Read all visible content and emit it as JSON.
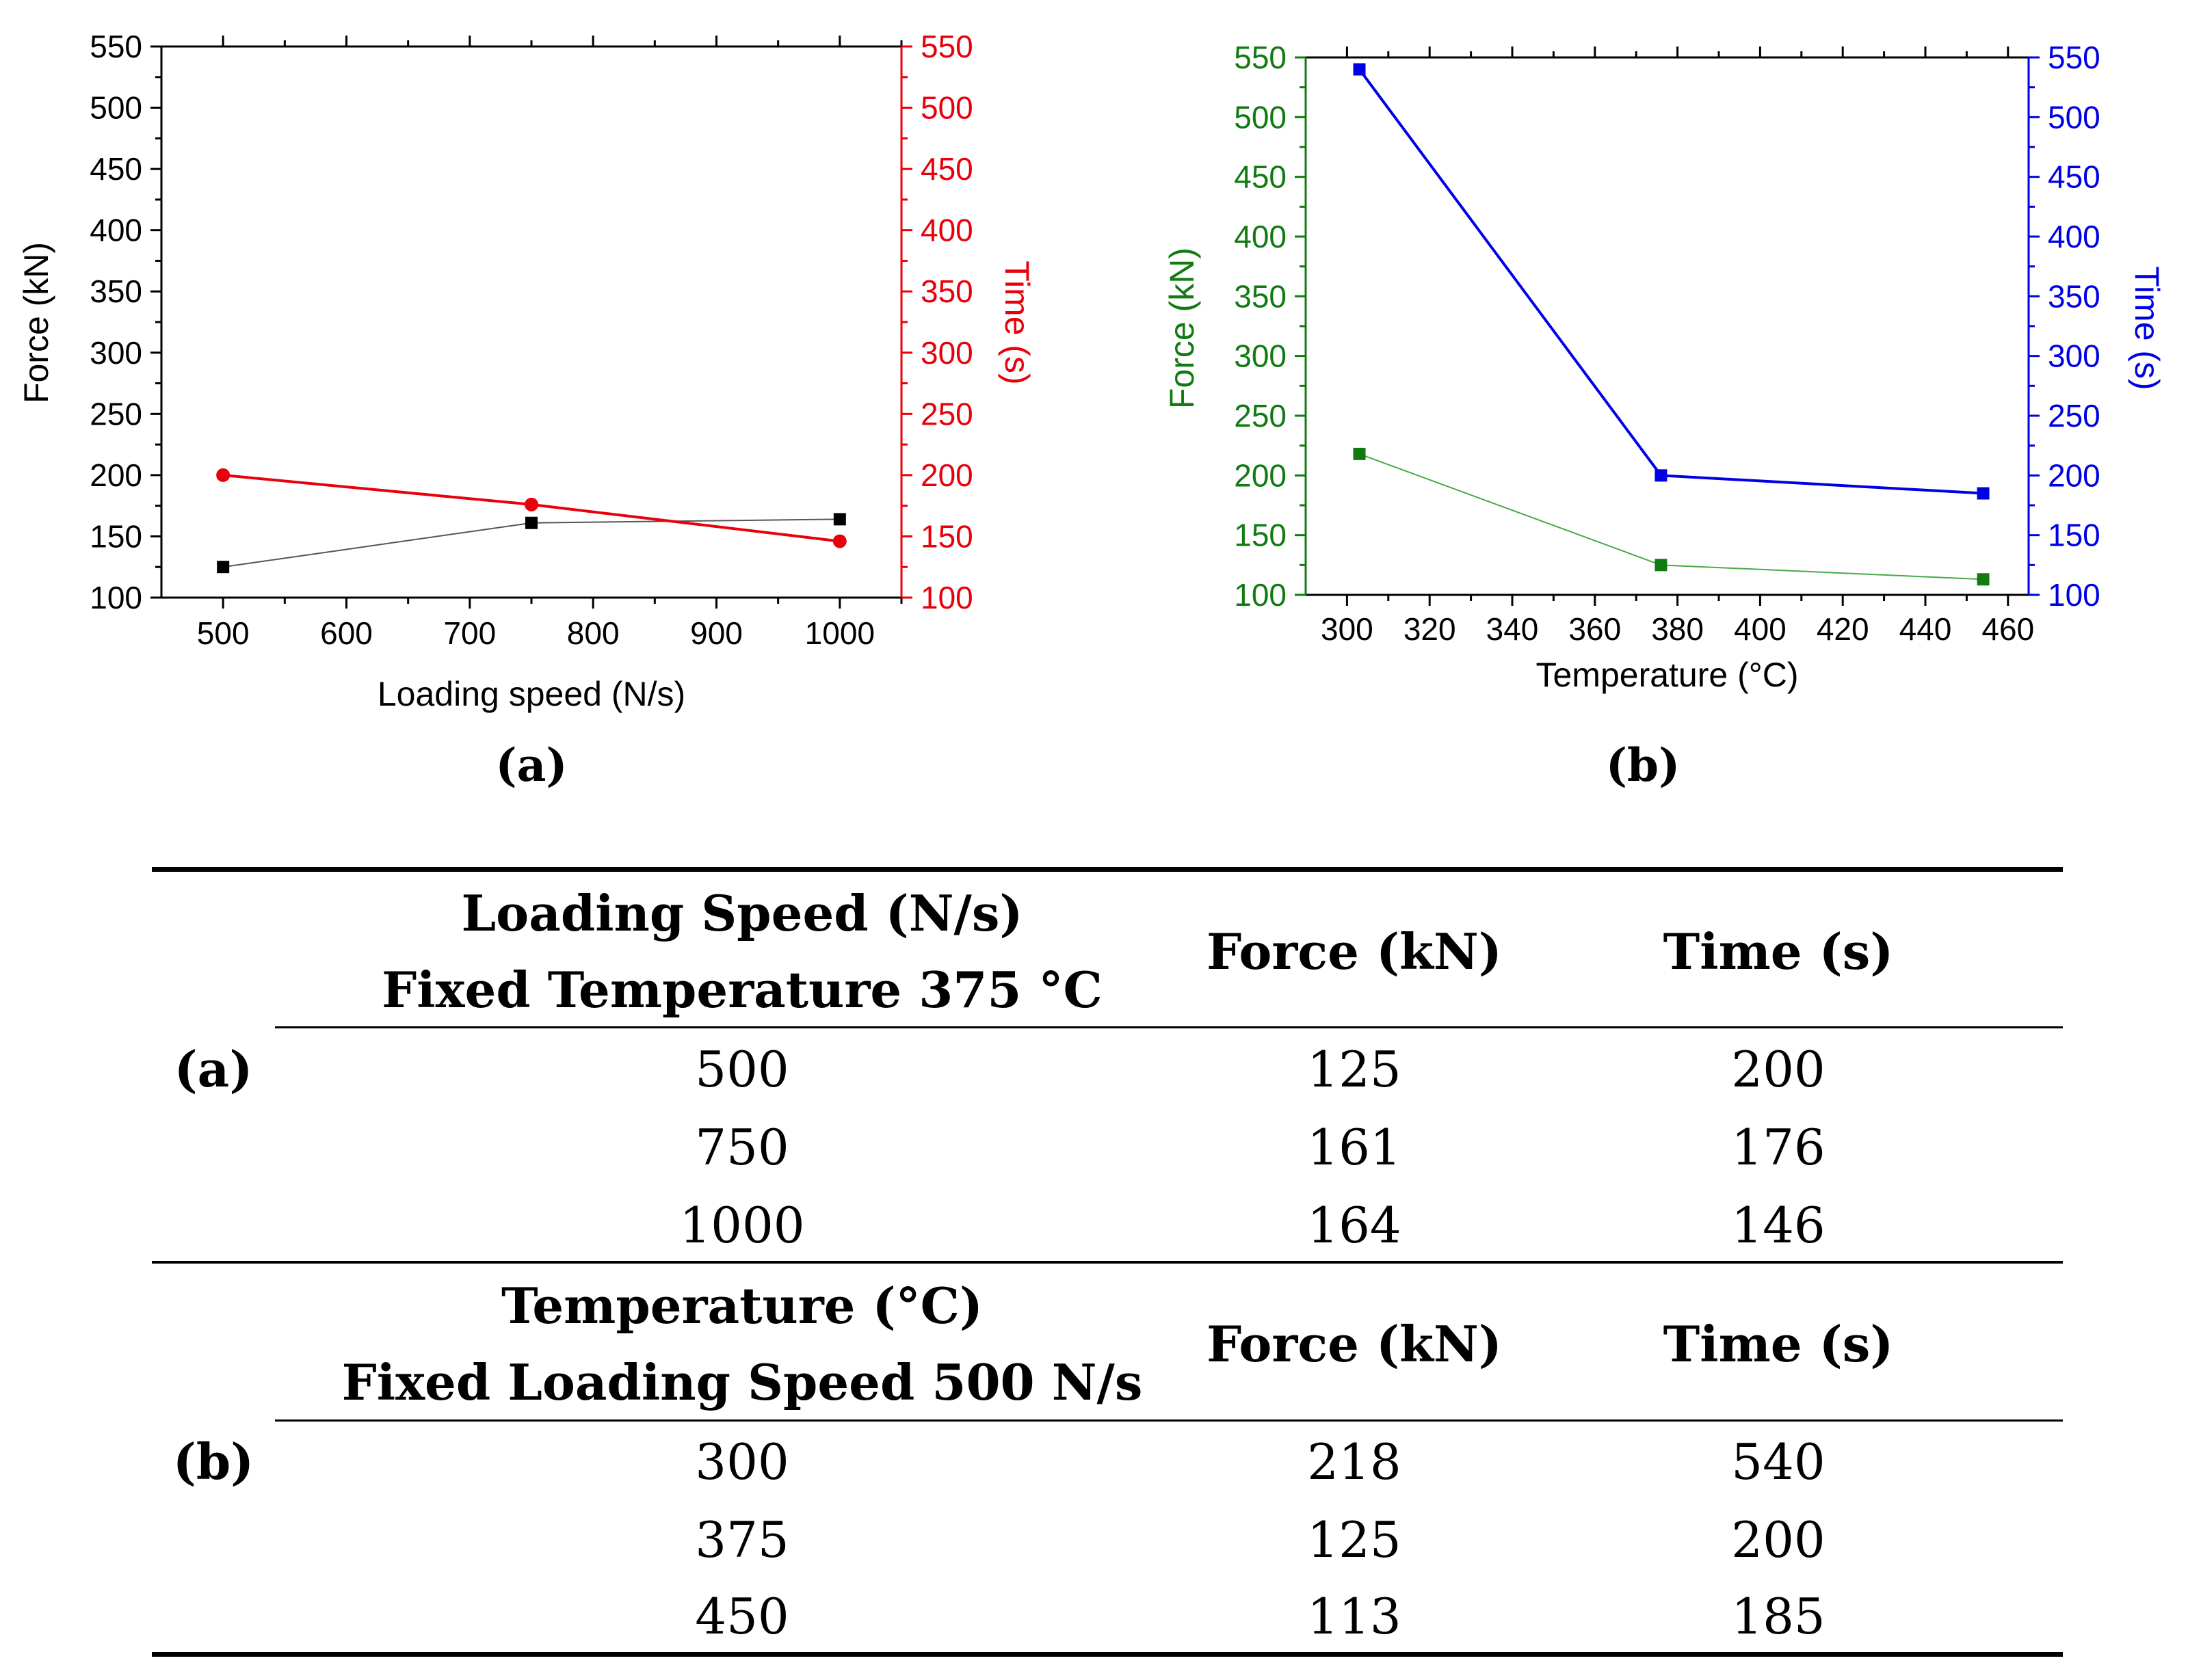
{
  "chart_data": [
    {
      "type": "line",
      "panel_label": "(a)",
      "xlabel": "Loading speed (N/s)",
      "ylabel_left": "Force (kN)",
      "ylabel_right": "Time (s)",
      "xlim": [
        450,
        1050
      ],
      "ylim_left": [
        100,
        550
      ],
      "ylim_right": [
        100,
        550
      ],
      "x_ticks": [
        500,
        600,
        700,
        800,
        900,
        1000
      ],
      "y_ticks": [
        100,
        150,
        200,
        250,
        300,
        350,
        400,
        450,
        500,
        550
      ],
      "x": [
        500,
        750,
        1000
      ],
      "series": [
        {
          "name": "Force (kN)",
          "axis": "left",
          "color": "#000000",
          "line_color": "#555555",
          "marker": "square",
          "values": [
            125,
            161,
            164
          ]
        },
        {
          "name": "Time (s)",
          "axis": "right",
          "color": "#e8000b",
          "line_color": "#e8000b",
          "marker": "circle",
          "values": [
            200,
            176,
            146
          ]
        }
      ]
    },
    {
      "type": "line",
      "panel_label": "(b)",
      "xlabel": "Temperature (°C)",
      "ylabel_left": "Force (kN)",
      "ylabel_right": "Time (s)",
      "xlim": [
        290,
        465
      ],
      "ylim_left": [
        100,
        550
      ],
      "ylim_right": [
        100,
        550
      ],
      "x_ticks": [
        300,
        320,
        340,
        360,
        380,
        400,
        420,
        440,
        460
      ],
      "y_ticks": [
        100,
        150,
        200,
        250,
        300,
        350,
        400,
        450,
        500,
        550
      ],
      "x": [
        303,
        376,
        454
      ],
      "series": [
        {
          "name": "Force (kN)",
          "axis": "left",
          "color": "#117a11",
          "line_color": "#4aa84a",
          "marker": "square",
          "values": [
            218,
            125,
            113
          ]
        },
        {
          "name": "Time (s)",
          "axis": "right",
          "color": "#0000e6",
          "line_color": "#0000e6",
          "marker": "square",
          "values": [
            540,
            200,
            185
          ]
        }
      ]
    }
  ],
  "table": {
    "section_a": {
      "label": "(a)",
      "header_line1": "Loading Speed (N/s)",
      "header_line2": "Fixed Temperature 375 °C",
      "force_header": "Force (kN)",
      "time_header": "Time (s)",
      "rows": [
        {
          "param": "500",
          "force": "125",
          "time": "200"
        },
        {
          "param": "750",
          "force": "161",
          "time": "176"
        },
        {
          "param": "1000",
          "force": "164",
          "time": "146"
        }
      ]
    },
    "section_b": {
      "label": "(b)",
      "header_line1": "Temperature (°C)",
      "header_line2": "Fixed Loading Speed 500 N/s",
      "force_header": "Force (kN)",
      "time_header": "Time (s)",
      "rows": [
        {
          "param": "300",
          "force": "218",
          "time": "540"
        },
        {
          "param": "375",
          "force": "125",
          "time": "200"
        },
        {
          "param": "450",
          "force": "113",
          "time": "185"
        }
      ]
    }
  }
}
